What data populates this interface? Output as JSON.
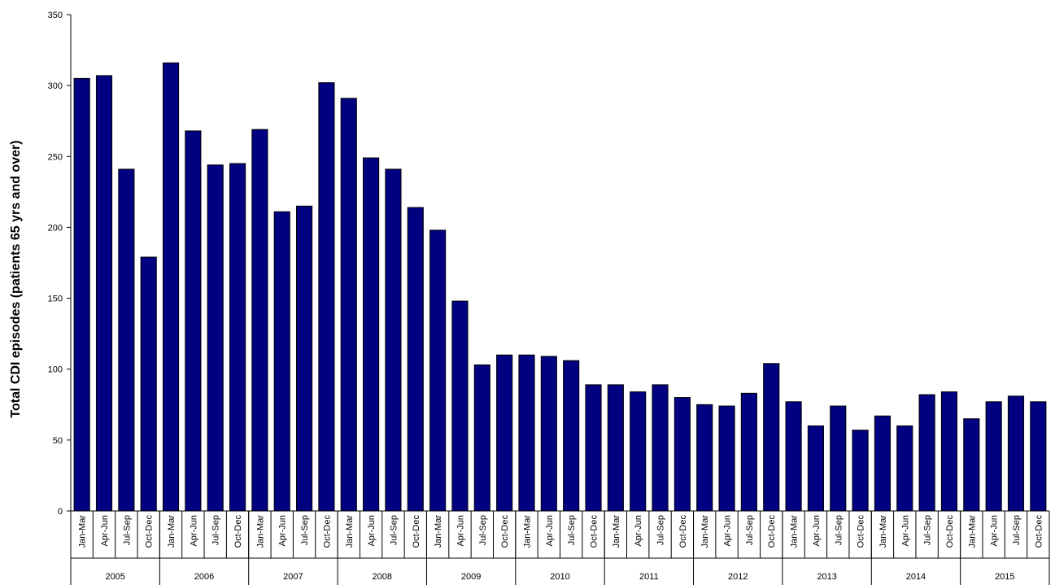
{
  "chart_data": {
    "type": "bar",
    "title": "",
    "xlabel": "",
    "ylabel": "Total CDI episodes (patients 65 yrs and over)",
    "ylim": [
      0,
      350
    ],
    "yticks": [
      0,
      50,
      100,
      150,
      200,
      250,
      300,
      350
    ],
    "grid": false,
    "bar_color": "#000080",
    "groups": [
      {
        "year": "2005",
        "quarters": [
          "Jan-Mar",
          "Apr-Jun",
          "Jul-Sep",
          "Oct-Dec"
        ],
        "values": [
          305,
          307,
          241,
          179
        ]
      },
      {
        "year": "2006",
        "quarters": [
          "Jan-Mar",
          "Apr-Jun",
          "Jul-Sep",
          "Oct-Dec"
        ],
        "values": [
          316,
          268,
          244,
          245
        ]
      },
      {
        "year": "2007",
        "quarters": [
          "Jan-Mar",
          "Apr-Jun",
          "Jul-Sep",
          "Oct-Dec"
        ],
        "values": [
          269,
          211,
          215,
          302
        ]
      },
      {
        "year": "2008",
        "quarters": [
          "Jan-Mar",
          "Apr-Jun",
          "Jul-Sep",
          "Oct-Dec"
        ],
        "values": [
          291,
          249,
          241,
          214
        ]
      },
      {
        "year": "2009",
        "quarters": [
          "Jan-Mar",
          "Apr-Jun",
          "Jul-Sep",
          "Oct-Dec"
        ],
        "values": [
          198,
          148,
          103,
          110
        ]
      },
      {
        "year": "2010",
        "quarters": [
          "Jan-Mar",
          "Apr-Jun",
          "Jul-Sep",
          "Oct-Dec"
        ],
        "values": [
          110,
          109,
          106,
          89
        ]
      },
      {
        "year": "2011",
        "quarters": [
          "Jan-Mar",
          "Apr-Jun",
          "Jul-Sep",
          "Oct-Dec"
        ],
        "values": [
          89,
          84,
          89,
          80
        ]
      },
      {
        "year": "2012",
        "quarters": [
          "Jan-Mar",
          "Apr-Jun",
          "Jul-Sep",
          "Oct-Dec"
        ],
        "values": [
          75,
          74,
          83,
          104
        ]
      },
      {
        "year": "2013",
        "quarters": [
          "Jan-Mar",
          "Apr-Jun",
          "Jul-Sep",
          "Oct-Dec"
        ],
        "values": [
          77,
          60,
          74,
          57
        ]
      },
      {
        "year": "2014",
        "quarters": [
          "Jan-Mar",
          "Apr-Jun",
          "Jul-Sep",
          "Oct-Dec"
        ],
        "values": [
          67,
          60,
          82,
          84
        ]
      },
      {
        "year": "2015",
        "quarters": [
          "Jan-Mar",
          "Apr-Jun",
          "Jul-Sep",
          "Oct-Dec"
        ],
        "values": [
          65,
          77,
          81,
          77
        ]
      }
    ]
  }
}
